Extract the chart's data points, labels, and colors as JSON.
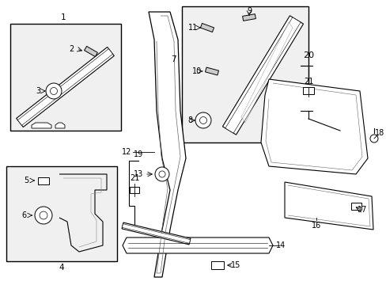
{
  "bg_color": "#ffffff",
  "fig_width": 4.89,
  "fig_height": 3.6,
  "dpi": 100,
  "line_color": "#000000",
  "text_color": "#000000",
  "font_size": 7.0
}
